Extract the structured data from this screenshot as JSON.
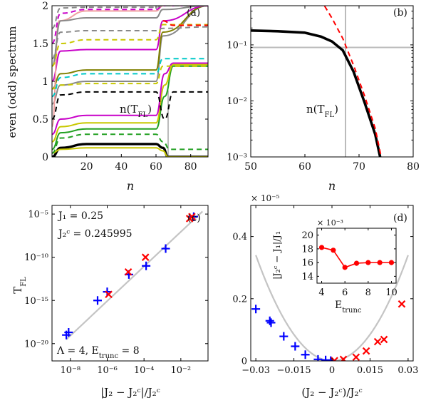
{
  "chart_data": [
    {
      "panel": "(a)",
      "type": "line",
      "ylabel": "even (odd) spectrum",
      "xlabel": "n",
      "xlim": [
        0,
        90
      ],
      "ylim": [
        0,
        2
      ],
      "xticks": [
        "20",
        "40",
        "60",
        "80"
      ],
      "yticks": [
        "0",
        "0.5",
        "1",
        "1.5",
        "2"
      ],
      "annotation": "n(T_FL)",
      "vline_x": 67,
      "series": [
        {
          "style": "solid",
          "color": "#000000",
          "x": [
            0,
            5,
            20,
            60,
            64,
            67,
            70,
            90
          ],
          "y": [
            0,
            0.12,
            0.17,
            0.17,
            0.12,
            0,
            0,
            0
          ]
        },
        {
          "style": "solid",
          "color": "#c8c800",
          "x": [
            0,
            5,
            20,
            60,
            64,
            67,
            70,
            90
          ],
          "y": [
            0.05,
            0.1,
            0.12,
            0.12,
            0.08,
            0,
            0,
            0
          ]
        },
        {
          "style": "solid",
          "color": "#22a022",
          "x": [
            0,
            5,
            20,
            60,
            65,
            70,
            90
          ],
          "y": [
            0.1,
            0.32,
            0.37,
            0.37,
            0.8,
            1.2,
            1.2
          ]
        },
        {
          "style": "solid",
          "color": "#c8c800",
          "x": [
            0,
            5,
            20,
            60,
            65,
            70,
            90
          ],
          "y": [
            0.2,
            0.4,
            0.45,
            0.45,
            0.95,
            1.22,
            1.22
          ]
        },
        {
          "style": "solid",
          "color": "#c800c8",
          "x": [
            0,
            5,
            20,
            60,
            65,
            70,
            90
          ],
          "y": [
            0.3,
            0.5,
            0.55,
            0.55,
            1.1,
            1.24,
            1.24
          ]
        },
        {
          "style": "solid",
          "color": "#888888",
          "x": [
            0,
            5,
            20,
            60,
            64,
            90
          ],
          "y": [
            0.7,
            0.95,
            1.0,
            1.0,
            1.6,
            2.0
          ]
        },
        {
          "style": "solid",
          "color": "#808000",
          "x": [
            0,
            5,
            20,
            60,
            64,
            90
          ],
          "y": [
            0.9,
            1.1,
            1.15,
            1.15,
            1.65,
            2.0
          ]
        },
        {
          "style": "solid",
          "color": "#c800c8",
          "x": [
            0,
            5,
            20,
            60,
            64,
            90
          ],
          "y": [
            1.0,
            1.4,
            1.42,
            1.42,
            1.8,
            2.0
          ]
        },
        {
          "style": "solid",
          "color": "#f0a0a0",
          "x": [
            0,
            4,
            20,
            60,
            64,
            90
          ],
          "y": [
            0.4,
            1.8,
            1.93,
            1.93,
            2.0,
            2.0
          ]
        },
        {
          "style": "solid",
          "color": "#888888",
          "x": [
            0,
            5,
            20,
            60,
            64,
            90
          ],
          "y": [
            1.2,
            1.8,
            1.84,
            1.84,
            1.95,
            2.0
          ]
        },
        {
          "style": "dashed",
          "color": "#000000",
          "x": [
            0,
            5,
            20,
            60,
            65,
            70,
            90
          ],
          "y": [
            0.5,
            0.82,
            0.86,
            0.86,
            0.5,
            0.86,
            0.86
          ]
        },
        {
          "style": "dashed",
          "color": "#22a022",
          "x": [
            0,
            5,
            20,
            60,
            64,
            68,
            90
          ],
          "y": [
            0.05,
            0.25,
            0.3,
            0.3,
            0.2,
            0.1,
            0.1
          ]
        },
        {
          "style": "dashed",
          "color": "#c8c800",
          "x": [
            0,
            5,
            20,
            60,
            64,
            90
          ],
          "y": [
            0.9,
            0.95,
            0.97,
            0.97,
            1.2,
            1.2
          ]
        },
        {
          "style": "dashed",
          "color": "#00c8c8",
          "x": [
            0,
            5,
            20,
            60,
            64,
            90
          ],
          "y": [
            0.8,
            1.05,
            1.1,
            1.1,
            1.3,
            1.3
          ]
        },
        {
          "style": "dashed",
          "color": "#c8c800",
          "x": [
            0,
            5,
            20,
            60,
            64,
            90
          ],
          "y": [
            1.2,
            1.5,
            1.55,
            1.55,
            1.75,
            1.75
          ]
        },
        {
          "style": "dashed",
          "color": "#888888",
          "x": [
            0,
            5,
            20,
            60,
            64,
            90
          ],
          "y": [
            1.3,
            1.65,
            1.67,
            1.67,
            1.7,
            1.72
          ]
        },
        {
          "style": "dashed",
          "color": "#ff0000",
          "x": [
            64,
            70,
            90
          ],
          "y": [
            1.8,
            1.74,
            1.74
          ]
        },
        {
          "style": "dashed",
          "color": "#c800c8",
          "x": [
            0,
            5,
            20,
            60,
            64,
            90
          ],
          "y": [
            1.5,
            1.9,
            1.95,
            1.95,
            2.0,
            2.0
          ]
        },
        {
          "style": "dashed",
          "color": "#888888",
          "x": [
            0,
            5,
            20,
            60,
            64,
            90
          ],
          "y": [
            1.7,
            1.97,
            1.98,
            1.98,
            2.0,
            2.0
          ]
        }
      ]
    },
    {
      "panel": "(b)",
      "type": "line",
      "xlabel": "n",
      "yscale": "log",
      "xlim": [
        50,
        80
      ],
      "ylim": [
        0.001,
        0.5
      ],
      "xticks": [
        "50",
        "60",
        "70",
        "80"
      ],
      "yticks": [
        "10⁻³",
        "10⁻²",
        "10⁻¹"
      ],
      "annotation": "n(T_FL)",
      "crosshair": {
        "x": 67.5,
        "y": 0.09
      },
      "series": [
        {
          "style": "solid",
          "color": "#000000",
          "x": [
            50,
            55,
            60,
            63,
            65,
            67,
            69,
            71,
            73,
            74
          ],
          "y": [
            0.18,
            0.175,
            0.165,
            0.14,
            0.115,
            0.08,
            0.033,
            0.0095,
            0.0025,
            0.0009
          ]
        },
        {
          "style": "dashed",
          "color": "#ff0000",
          "x": [
            62,
            65,
            67,
            69,
            71,
            73,
            74
          ],
          "y": [
            0.9,
            0.3,
            0.13,
            0.043,
            0.0125,
            0.0032,
            0.0011
          ]
        }
      ]
    },
    {
      "panel": "(c)",
      "type": "scatter",
      "xlabel": "|J2 − J2^c| / J2^c",
      "ylabel": "T_FL",
      "xscale": "log",
      "yscale": "log",
      "xlim": [
        1e-09,
        0.3
      ],
      "ylim": [
        1e-22,
        0.0001
      ],
      "xticks": [
        "10⁻⁸",
        "10⁻⁶",
        "10⁻⁴",
        "10⁻²"
      ],
      "yticks": [
        "10⁻²⁰",
        "10⁻¹⁵",
        "10⁻¹⁰",
        "10⁻⁵"
      ],
      "annotations": [
        "J1 = 0.25",
        "J2^c = 0.245995",
        "Λ = 4, E_trunc = 8"
      ],
      "fit_line": {
        "x": [
          6e-09,
          0.15
        ],
        "y": [
          3e-20,
          2e-05
        ]
      },
      "series": [
        {
          "marker": "plus",
          "color": "#0000ff",
          "x": [
            6e-09,
            8e-09,
            3e-07,
            1e-06,
            1.5e-05,
            0.00013,
            0.0015,
            0.05
          ],
          "y": [
            1e-19,
            2e-19,
            1e-15,
            1e-14,
            1e-12,
            1e-11,
            1e-09,
            5e-06
          ]
        },
        {
          "marker": "x",
          "color": "#ff0000",
          "x": [
            1.2e-06,
            1.4e-05,
            0.00012,
            0.03,
            0.04
          ],
          "y": [
            5e-15,
            2e-12,
            1e-10,
            3e-06,
            5e-06
          ]
        }
      ]
    },
    {
      "panel": "(d)",
      "type": "scatter",
      "xlabel": "(J2 − J2^c) / J2^c",
      "xlim": [
        -0.032,
        0.032
      ],
      "ylim": [
        0,
        5e-06
      ],
      "xticks": [
        "−0.03",
        "−0.015",
        "0",
        "0.015",
        "0.03"
      ],
      "yticks": [
        "0",
        "0.2",
        "0.4"
      ],
      "y_multiplier": "× 10⁻⁵",
      "fit_curve": {
        "type": "parabola",
        "x": [
          -0.03,
          0.03
        ],
        "ymax": 3.4e-06
      },
      "series": [
        {
          "marker": "plus",
          "color": "#0000ff",
          "x": [
            -0.03,
            -0.0245,
            -0.024,
            -0.019,
            -0.0145,
            -0.0105,
            -0.0055,
            -0.0025,
            -0.0005
          ],
          "y": [
            1.67e-06,
            1.29e-06,
            1.23e-06,
            7.9e-07,
            4.7e-07,
            2e-07,
            5e-08,
            3e-08,
            1e-08
          ]
        },
        {
          "marker": "x",
          "color": "#ff0000",
          "x": [
            0.001,
            0.0045,
            0.0095,
            0.0135,
            0.018,
            0.0205,
            0.0275
          ],
          "y": [
            1e-08,
            5e-08,
            1.2e-07,
            3.2e-07,
            6.2e-07,
            6.9e-07,
            1.83e-06
          ]
        }
      ],
      "inset": {
        "type": "line",
        "xlabel": "E_trunc",
        "ylabel": "|J2^c − J1| / J1",
        "xlim": [
          3.6,
          10.4
        ],
        "ylim": [
          13,
          21
        ],
        "xticks": [
          "4",
          "6",
          "8",
          "10"
        ],
        "yticks": [
          "14",
          "16",
          "18",
          "20"
        ],
        "y_multiplier": "× 10⁻³",
        "x": [
          4,
          5,
          6,
          7,
          8,
          9,
          10
        ],
        "y": [
          18.2,
          17.8,
          15.3,
          15.9,
          16.0,
          16.0,
          16.0
        ],
        "color": "#ff0000"
      }
    }
  ]
}
